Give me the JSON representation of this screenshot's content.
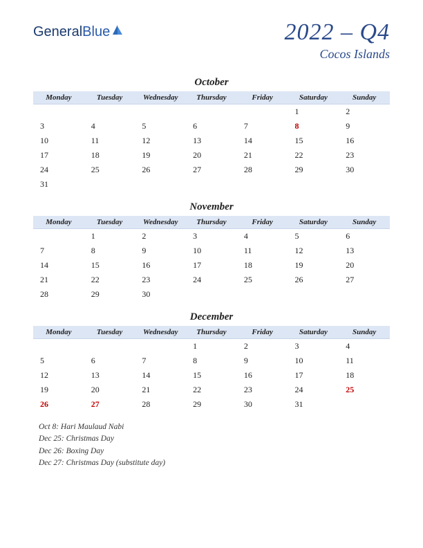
{
  "logo": {
    "text1": "General",
    "text2": "Blue"
  },
  "title": "2022 – Q4",
  "subtitle": "Cocos Islands",
  "colors": {
    "header_bg": "#dde6f4",
    "title_color": "#2a4a8a",
    "holiday_color": "#c00000",
    "text_color": "#222222",
    "page_bg": "#ffffff"
  },
  "weekdays": [
    "Monday",
    "Tuesday",
    "Wednesday",
    "Thursday",
    "Friday",
    "Saturday",
    "Sunday"
  ],
  "months": [
    {
      "name": "October",
      "weeks": [
        [
          "",
          "",
          "",
          "",
          "",
          "1",
          "2"
        ],
        [
          "3",
          "4",
          "5",
          "6",
          "7",
          "8",
          "9"
        ],
        [
          "10",
          "11",
          "12",
          "13",
          "14",
          "15",
          "16"
        ],
        [
          "17",
          "18",
          "19",
          "20",
          "21",
          "22",
          "23"
        ],
        [
          "24",
          "25",
          "26",
          "27",
          "28",
          "29",
          "30"
        ],
        [
          "31",
          "",
          "",
          "",
          "",
          "",
          ""
        ]
      ],
      "holidays": [
        "8"
      ]
    },
    {
      "name": "November",
      "weeks": [
        [
          "",
          "1",
          "2",
          "3",
          "4",
          "5",
          "6"
        ],
        [
          "7",
          "8",
          "9",
          "10",
          "11",
          "12",
          "13"
        ],
        [
          "14",
          "15",
          "16",
          "17",
          "18",
          "19",
          "20"
        ],
        [
          "21",
          "22",
          "23",
          "24",
          "25",
          "26",
          "27"
        ],
        [
          "28",
          "29",
          "30",
          "",
          "",
          "",
          ""
        ]
      ],
      "holidays": []
    },
    {
      "name": "December",
      "weeks": [
        [
          "",
          "",
          "",
          "1",
          "2",
          "3",
          "4"
        ],
        [
          "5",
          "6",
          "7",
          "8",
          "9",
          "10",
          "11"
        ],
        [
          "12",
          "13",
          "14",
          "15",
          "16",
          "17",
          "18"
        ],
        [
          "19",
          "20",
          "21",
          "22",
          "23",
          "24",
          "25"
        ],
        [
          "26",
          "27",
          "28",
          "29",
          "30",
          "31",
          ""
        ]
      ],
      "holidays": [
        "25",
        "26",
        "27"
      ]
    }
  ],
  "holiday_list": [
    "Oct 8: Hari Maulaud Nabi",
    "Dec 25: Christmas Day",
    "Dec 26: Boxing Day",
    "Dec 27: Christmas Day (substitute day)"
  ]
}
